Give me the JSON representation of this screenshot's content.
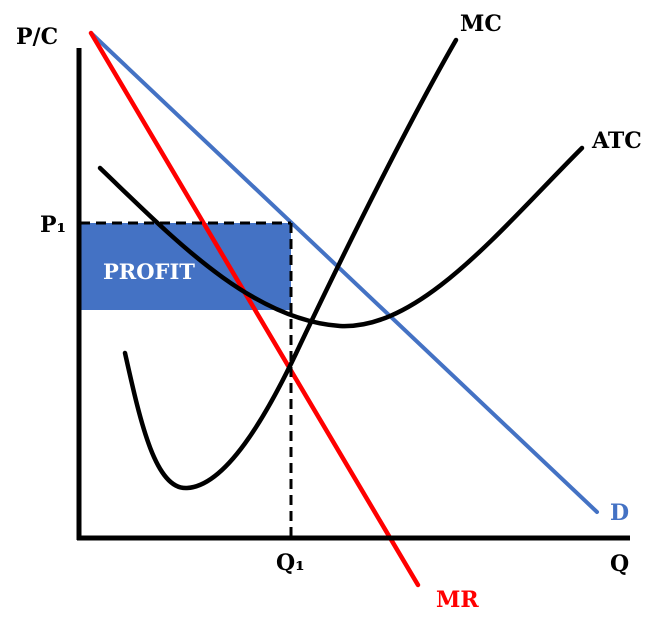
{
  "labels": {
    "y_axis": "P/C",
    "x_axis": "Q",
    "price": "P₁",
    "quantity": "Q₁",
    "profit": "PROFIT",
    "mc": "MC",
    "atc": "ATC",
    "demand": "D",
    "mr": "MR"
  },
  "colors": {
    "axis": "#000000",
    "demand": "#4472c4",
    "marginal_revenue": "#ff0000",
    "cost_curves": "#000000",
    "profit_area": "#4472c4",
    "profit_text": "#ffffff",
    "demand_label": "#4472c4",
    "mr_label": "#ff0000"
  }
}
